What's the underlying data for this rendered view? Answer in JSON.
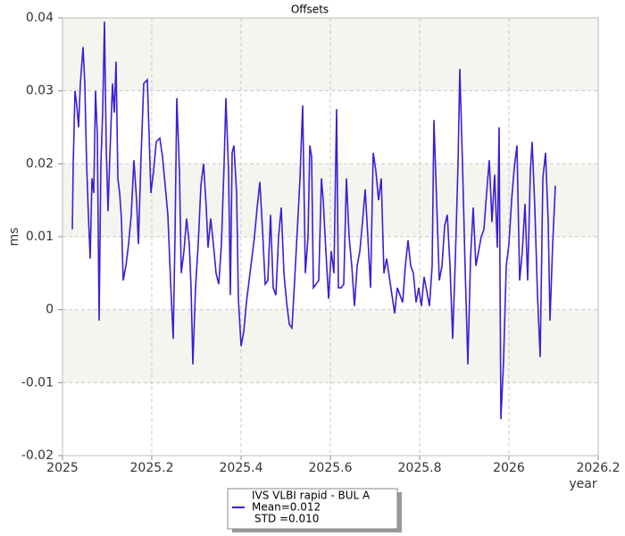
{
  "chart_data": {
    "type": "line",
    "title": "Offsets",
    "xlabel": "year",
    "ylabel": "ms",
    "xlim": [
      2025,
      2026.2
    ],
    "xticks": [
      2025,
      2025.2,
      2025.4,
      2025.6,
      2025.8,
      2026,
      2026.2
    ],
    "ylim": [
      -0.02,
      0.04
    ],
    "yticks": [
      -0.02,
      -0.01,
      0,
      0.01,
      0.02,
      0.03,
      0.04
    ],
    "grid": true,
    "legend_position": "bottom",
    "mean_label": "Mean=0.012",
    "std_label": "STD =0.010",
    "x": [
      2025.022,
      2025.024,
      2025.028,
      2025.032,
      2025.036,
      2025.04,
      2025.046,
      2025.05,
      2025.054,
      2025.058,
      2025.062,
      2025.066,
      2025.07,
      2025.074,
      2025.078,
      2025.082,
      2025.086,
      2025.09,
      2025.094,
      2025.098,
      2025.102,
      2025.106,
      2025.112,
      2025.116,
      2025.12,
      2025.124,
      2025.128,
      2025.132,
      2025.136,
      2025.142,
      2025.148,
      2025.154,
      2025.16,
      2025.166,
      2025.17,
      2025.176,
      2025.182,
      2025.19,
      2025.194,
      2025.198,
      2025.204,
      2025.21,
      2025.218,
      2025.224,
      2025.23,
      2025.236,
      2025.242,
      2025.248,
      2025.252,
      2025.256,
      2025.262,
      2025.266,
      2025.272,
      2025.278,
      2025.284,
      2025.288,
      2025.292,
      2025.298,
      2025.304,
      2025.31,
      2025.316,
      2025.322,
      2025.326,
      2025.332,
      2025.338,
      2025.344,
      2025.35,
      2025.356,
      2025.362,
      2025.366,
      2025.372,
      2025.376,
      2025.38,
      2025.384,
      2025.39,
      2025.394,
      2025.4,
      2025.406,
      2025.412,
      2025.418,
      2025.424,
      2025.43,
      2025.436,
      2025.442,
      2025.448,
      2025.454,
      2025.46,
      2025.466,
      2025.472,
      2025.478,
      2025.484,
      2025.49,
      2025.496,
      2025.502,
      2025.508,
      2025.514,
      2025.52,
      2025.526,
      2025.532,
      2025.538,
      2025.544,
      2025.55,
      2025.554,
      2025.558,
      2025.562,
      2025.568,
      2025.574,
      2025.58,
      2025.584,
      2025.59,
      2025.596,
      2025.602,
      2025.608,
      2025.614,
      2025.618,
      2025.624,
      2025.63,
      2025.636,
      2025.642,
      2025.648,
      2025.654,
      2025.66,
      2025.666,
      2025.672,
      2025.678,
      2025.684,
      2025.69,
      2025.696,
      2025.702,
      2025.708,
      2025.714,
      2025.72,
      2025.726,
      2025.732,
      2025.738,
      2025.744,
      2025.75,
      2025.756,
      2025.762,
      2025.768,
      2025.774,
      2025.78,
      2025.786,
      2025.792,
      2025.798,
      2025.804,
      2025.81,
      2025.816,
      2025.822,
      2025.828,
      2025.832,
      2025.838,
      2025.844,
      2025.85,
      2025.856,
      2025.862,
      2025.868,
      2025.874,
      2025.88,
      2025.886,
      2025.89,
      2025.896,
      2025.902,
      2025.908,
      2025.914,
      2025.92,
      2025.926,
      2025.932,
      2025.938,
      2025.944,
      2025.95,
      2025.956,
      2025.962,
      2025.968,
      2025.974,
      2025.978,
      2025.982,
      2025.988,
      2025.994,
      2026.0,
      2026.006,
      2026.012,
      2026.018,
      2026.024,
      2026.03,
      2026.036,
      2026.042,
      2026.048,
      2026.052,
      2026.058,
      2026.064,
      2026.07,
      2026.076,
      2026.082,
      2026.088,
      2026.092,
      2026.098,
      2026.104
    ],
    "series": [
      {
        "name": "IVS VLBI rapid - BUL A",
        "color": "#3a1fd6",
        "values": [
          0.011,
          0.02,
          0.03,
          0.028,
          0.025,
          0.031,
          0.036,
          0.031,
          0.02,
          0.013,
          0.007,
          0.018,
          0.016,
          0.03,
          0.024,
          -0.0015,
          0.02,
          0.027,
          0.0395,
          0.022,
          0.0135,
          0.021,
          0.031,
          0.027,
          0.034,
          0.018,
          0.016,
          0.0125,
          0.004,
          0.006,
          0.009,
          0.013,
          0.0205,
          0.015,
          0.009,
          0.021,
          0.031,
          0.0315,
          0.024,
          0.016,
          0.019,
          0.023,
          0.0235,
          0.021,
          0.017,
          0.013,
          0.004,
          -0.004,
          0.01,
          0.029,
          0.019,
          0.005,
          0.008,
          0.0125,
          0.009,
          0.003,
          -0.0075,
          0.003,
          0.009,
          0.017,
          0.02,
          0.014,
          0.0085,
          0.0125,
          0.009,
          0.005,
          0.0035,
          0.009,
          0.02,
          0.029,
          0.019,
          0.002,
          0.0215,
          0.0225,
          0.016,
          0.0015,
          -0.005,
          -0.003,
          0.001,
          0.004,
          0.007,
          0.01,
          0.014,
          0.0175,
          0.011,
          0.0035,
          0.004,
          0.013,
          0.003,
          0.002,
          0.01,
          0.014,
          0.005,
          0.001,
          -0.002,
          -0.0025,
          0.004,
          0.011,
          0.018,
          0.028,
          0.005,
          0.01,
          0.0225,
          0.021,
          0.003,
          0.0035,
          0.004,
          0.018,
          0.015,
          0.008,
          0.0015,
          0.008,
          0.005,
          0.0275,
          0.003,
          0.003,
          0.0035,
          0.018,
          0.01,
          0.006,
          0.0005,
          0.006,
          0.008,
          0.012,
          0.0165,
          0.01,
          0.003,
          0.0215,
          0.019,
          0.015,
          0.018,
          0.005,
          0.007,
          0.0045,
          0.002,
          -0.0005,
          0.003,
          0.002,
          0.001,
          0.006,
          0.0095,
          0.006,
          0.005,
          0.001,
          0.003,
          0.0005,
          0.0045,
          0.0025,
          0.0005,
          0.006,
          0.026,
          0.015,
          0.004,
          0.006,
          0.0115,
          0.013,
          0.006,
          -0.004,
          0.007,
          0.02,
          0.033,
          0.02,
          0.0055,
          -0.0075,
          0.007,
          0.014,
          0.006,
          0.008,
          0.01,
          0.011,
          0.016,
          0.0205,
          0.012,
          0.0185,
          0.0085,
          0.025,
          -0.015,
          -0.007,
          0.006,
          0.009,
          0.015,
          0.0195,
          0.0225,
          0.004,
          0.008,
          0.0145,
          0.004,
          0.019,
          0.023,
          0.014,
          0.002,
          -0.0065,
          0.018,
          0.0215,
          0.012,
          -0.0015,
          0.009,
          0.017
        ]
      }
    ]
  }
}
